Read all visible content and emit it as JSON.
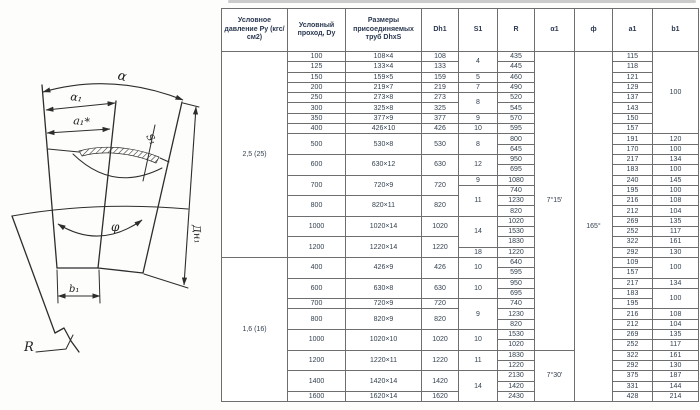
{
  "diagram": {
    "labels": {
      "alpha": "α",
      "alpha1": "α₁",
      "a1_star": "a₁*",
      "s1": "S₁",
      "dn1": "Дн₁",
      "phi": "φ",
      "b1": "b₁",
      "r": "R"
    }
  },
  "table": {
    "headers": [
      "Условное давление Ру (кгс/см2)",
      "Условный проход, Dy",
      "Размеры присоединяемых труб DhxS",
      "Dh1",
      "S1",
      "R",
      "α1",
      "ф",
      "a1",
      "b1"
    ],
    "rows": [
      [
        [
          0,
          "2,5 (25)",
          20
        ],
        [
          1,
          "100",
          1
        ],
        [
          2,
          "108×4",
          1
        ],
        [
          3,
          "108",
          1
        ],
        [
          4,
          "4",
          2
        ],
        [
          5,
          "435",
          1
        ],
        [
          6,
          "7°15'",
          29
        ],
        [
          7,
          "165°",
          34
        ],
        [
          8,
          "115",
          1
        ],
        [
          9,
          "100",
          8
        ]
      ],
      [
        [
          1,
          "125",
          1
        ],
        [
          2,
          "133×4",
          1
        ],
        [
          3,
          "133",
          1
        ],
        [
          5,
          "445",
          1
        ],
        [
          8,
          "118",
          1
        ]
      ],
      [
        [
          1,
          "150",
          1
        ],
        [
          2,
          "159×5",
          1
        ],
        [
          3,
          "159",
          1
        ],
        [
          4,
          "5",
          1
        ],
        [
          5,
          "460",
          1
        ],
        [
          8,
          "121",
          1
        ]
      ],
      [
        [
          1,
          "200",
          1
        ],
        [
          2,
          "219×7",
          1
        ],
        [
          3,
          "219",
          1
        ],
        [
          4,
          "7",
          1
        ],
        [
          5,
          "490",
          1
        ],
        [
          8,
          "129",
          1
        ]
      ],
      [
        [
          1,
          "250",
          1
        ],
        [
          2,
          "273×8",
          1
        ],
        [
          3,
          "273",
          1
        ],
        [
          4,
          "8",
          2
        ],
        [
          5,
          "520",
          1
        ],
        [
          8,
          "137",
          1
        ]
      ],
      [
        [
          1,
          "300",
          1
        ],
        [
          2,
          "325×8",
          1
        ],
        [
          3,
          "325",
          1
        ],
        [
          5,
          "545",
          1
        ],
        [
          8,
          "143",
          1
        ]
      ],
      [
        [
          1,
          "350",
          1
        ],
        [
          2,
          "377×9",
          1
        ],
        [
          3,
          "377",
          1
        ],
        [
          4,
          "9",
          1
        ],
        [
          5,
          "570",
          1
        ],
        [
          8,
          "150",
          1
        ]
      ],
      [
        [
          1,
          "400",
          1
        ],
        [
          2,
          "426×10",
          1
        ],
        [
          3,
          "426",
          1
        ],
        [
          4,
          "10",
          1
        ],
        [
          5,
          "595",
          1
        ],
        [
          8,
          "157",
          1
        ]
      ],
      [
        [
          1,
          "500",
          2
        ],
        [
          2,
          "530×8",
          2
        ],
        [
          3,
          "530",
          2
        ],
        [
          4,
          "8",
          2
        ],
        [
          5,
          "800",
          1
        ],
        [
          8,
          "191",
          1
        ],
        [
          9,
          "120",
          1
        ]
      ],
      [
        [
          5,
          "645",
          1
        ],
        [
          8,
          "170",
          1
        ],
        [
          9,
          "100",
          1
        ]
      ],
      [
        [
          1,
          "600",
          2
        ],
        [
          2,
          "630×12",
          2
        ],
        [
          3,
          "630",
          2
        ],
        [
          4,
          "12",
          2
        ],
        [
          5,
          "950",
          1
        ],
        [
          8,
          "217",
          1
        ],
        [
          9,
          "134",
          1
        ]
      ],
      [
        [
          5,
          "695",
          1
        ],
        [
          8,
          "183",
          1
        ],
        [
          9,
          "100",
          1
        ]
      ],
      [
        [
          1,
          "700",
          2
        ],
        [
          2,
          "720×9",
          2
        ],
        [
          3,
          "720",
          2
        ],
        [
          4,
          "9",
          1
        ],
        [
          5,
          "1080",
          1
        ],
        [
          8,
          "240",
          1
        ],
        [
          9,
          "145",
          1
        ]
      ],
      [
        [
          4,
          "11",
          3
        ],
        [
          5,
          "740",
          1
        ],
        [
          8,
          "195",
          1
        ],
        [
          9,
          "100",
          1
        ]
      ],
      [
        [
          1,
          "800",
          2
        ],
        [
          2,
          "820×11",
          2
        ],
        [
          3,
          "820",
          2
        ],
        [
          5,
          "1230",
          1
        ],
        [
          8,
          "216",
          1
        ],
        [
          9,
          "108",
          1
        ]
      ],
      [
        [
          5,
          "820",
          1
        ],
        [
          8,
          "212",
          1
        ],
        [
          9,
          "104",
          1
        ]
      ],
      [
        [
          1,
          "1000",
          2
        ],
        [
          2,
          "1020×14",
          2
        ],
        [
          3,
          "1020",
          2
        ],
        [
          4,
          "14",
          3
        ],
        [
          5,
          "1020",
          1
        ],
        [
          8,
          "269",
          1
        ],
        [
          9,
          "135",
          1
        ]
      ],
      [
        [
          5,
          "1530",
          1
        ],
        [
          8,
          "252",
          1
        ],
        [
          9,
          "117",
          1
        ]
      ],
      [
        [
          1,
          "1200",
          2
        ],
        [
          2,
          "1220×14",
          2
        ],
        [
          3,
          "1220",
          2
        ],
        [
          5,
          "1830",
          1
        ],
        [
          8,
          "322",
          1
        ],
        [
          9,
          "161",
          1
        ]
      ],
      [
        [
          4,
          "18",
          1
        ],
        [
          5,
          "1220",
          1
        ],
        [
          8,
          "292",
          1
        ],
        [
          9,
          "130",
          1
        ]
      ],
      [
        [
          0,
          "1,6 (16)",
          14
        ],
        [
          1,
          "400",
          2
        ],
        [
          2,
          "426×9",
          2
        ],
        [
          3,
          "426",
          2
        ],
        [
          4,
          "10",
          2
        ],
        [
          5,
          "640",
          1
        ],
        [
          8,
          "109",
          1
        ],
        [
          9,
          "100",
          2
        ]
      ],
      [
        [
          5,
          "595",
          1
        ],
        [
          8,
          "157",
          1
        ]
      ],
      [
        [
          1,
          "600",
          2
        ],
        [
          2,
          "630×8",
          2
        ],
        [
          3,
          "630",
          2
        ],
        [
          4,
          "10",
          2
        ],
        [
          5,
          "950",
          1
        ],
        [
          8,
          "217",
          1
        ],
        [
          9,
          "134",
          1
        ]
      ],
      [
        [
          5,
          "695",
          1
        ],
        [
          8,
          "183",
          1
        ],
        [
          9,
          "100",
          2
        ]
      ],
      [
        [
          1,
          "700",
          1
        ],
        [
          2,
          "720×9",
          1
        ],
        [
          3,
          "720",
          1
        ],
        [
          4,
          "9",
          3
        ],
        [
          5,
          "740",
          1
        ],
        [
          8,
          "195",
          1
        ]
      ],
      [
        [
          1,
          "800",
          2
        ],
        [
          2,
          "820×9",
          2
        ],
        [
          3,
          "820",
          2
        ],
        [
          5,
          "1230",
          1
        ],
        [
          8,
          "216",
          1
        ],
        [
          9,
          "108",
          1
        ]
      ],
      [
        [
          5,
          "820",
          1
        ],
        [
          8,
          "212",
          1
        ],
        [
          9,
          "104",
          1
        ]
      ],
      [
        [
          1,
          "1000",
          2
        ],
        [
          2,
          "1020×10",
          2
        ],
        [
          3,
          "1020",
          2
        ],
        [
          4,
          "10",
          2
        ],
        [
          5,
          "1530",
          1
        ],
        [
          8,
          "269",
          1
        ],
        [
          9,
          "135",
          1
        ]
      ],
      [
        [
          5,
          "1020",
          1
        ],
        [
          8,
          "252",
          1
        ],
        [
          9,
          "117",
          1
        ]
      ],
      [
        [
          1,
          "1200",
          2
        ],
        [
          2,
          "1220×11",
          2
        ],
        [
          3,
          "1220",
          2
        ],
        [
          4,
          "11",
          2
        ],
        [
          5,
          "1830",
          1
        ],
        [
          6,
          "7°30'",
          5
        ],
        [
          8,
          "322",
          1
        ],
        [
          9,
          "161",
          1
        ]
      ],
      [
        [
          5,
          "1220",
          1
        ],
        [
          8,
          "292",
          1
        ],
        [
          9,
          "130",
          1
        ]
      ],
      [
        [
          1,
          "1400",
          2
        ],
        [
          2,
          "1420×14",
          2
        ],
        [
          3,
          "1420",
          2
        ],
        [
          4,
          "14",
          3
        ],
        [
          5,
          "2130",
          1
        ],
        [
          8,
          "375",
          1
        ],
        [
          9,
          "187",
          1
        ]
      ],
      [
        [
          5,
          "1420",
          1
        ],
        [
          8,
          "331",
          1
        ],
        [
          9,
          "144",
          1
        ]
      ],
      [
        [
          1,
          "1600",
          1
        ],
        [
          2,
          "1620×14",
          1
        ],
        [
          3,
          "1620",
          1
        ],
        [
          5,
          "2430",
          1
        ],
        [
          8,
          "428",
          1
        ],
        [
          9,
          "214",
          1
        ]
      ]
    ]
  }
}
